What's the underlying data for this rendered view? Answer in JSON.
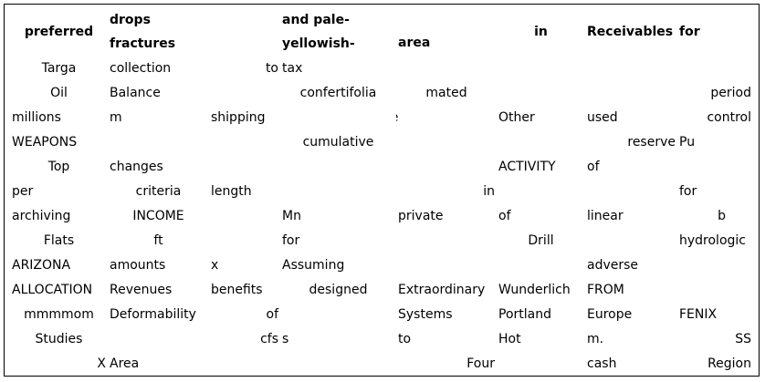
{
  "header": [
    "preferred",
    "drops fractures",
    "",
    "and pale-yellowish-",
    "area",
    "in",
    "Receivables",
    "for"
  ],
  "rows": [
    [
      "Targa",
      "collection",
      "to",
      "tax",
      "",
      "",
      "",
      ""
    ],
    [
      "Oil",
      "Balance",
      "",
      "confertifolia",
      "mated",
      "",
      "",
      "period"
    ],
    [
      "millions",
      "m",
      "shipping",
      "",
      "Wave",
      "Other",
      "used",
      "control"
    ],
    [
      "WEAPONS",
      "",
      "",
      "cumulative",
      "",
      "",
      "reserve",
      "Pu"
    ],
    [
      "Top",
      "changes",
      "",
      "",
      "",
      "ACTIVITY",
      "of",
      ""
    ],
    [
      "per",
      "criteria",
      "length",
      "",
      "in",
      "",
      "",
      "for"
    ],
    [
      "archiving",
      "INCOME",
      "",
      "Mn",
      "private",
      "of",
      "linear",
      "b"
    ],
    [
      "Flats",
      "ft",
      "",
      "for",
      "",
      "Drill",
      "",
      "hydrologic"
    ],
    [
      "ARIZONA",
      "amounts",
      "x",
      "Assuming",
      "",
      "",
      "adverse",
      ""
    ],
    [
      "ALLOCATION",
      "Revenues",
      "benefits",
      "designed",
      "Extraordinary",
      "Wunderlich",
      "FROM",
      ""
    ],
    [
      "mmmmom",
      "Deformability",
      "of",
      "",
      "Systems",
      "Portland",
      "Europe",
      "FENIX"
    ],
    [
      "Studies",
      "",
      "cfs",
      "s",
      "to",
      "Hot",
      "m.",
      "SS"
    ],
    [
      "X",
      "Area",
      "",
      "",
      "Four",
      "",
      "cash",
      "Region"
    ]
  ]
}
